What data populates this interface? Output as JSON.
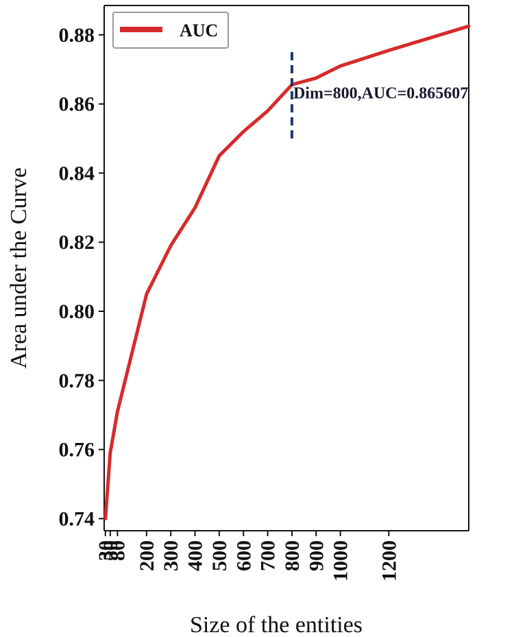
{
  "chart_data": {
    "type": "line",
    "xlabel": "Size of the entities",
    "ylabel": "Area under the Curve",
    "xlim": [
      25,
      1530
    ],
    "ylim": [
      0.7365,
      0.8885
    ],
    "x_ticks": [
      30,
      50,
      80,
      200,
      300,
      400,
      500,
      600,
      700,
      800,
      900,
      1000,
      1200
    ],
    "x_tick_labels": [
      "30",
      "50",
      "80",
      "200",
      "300",
      "400",
      "500",
      "600",
      "700",
      "800",
      "900",
      "1000",
      "1200"
    ],
    "y_ticks": [
      0.74,
      0.76,
      0.78,
      0.8,
      0.82,
      0.84,
      0.86,
      0.88
    ],
    "y_tick_labels": [
      "0.74",
      "0.76",
      "0.78",
      "0.80",
      "0.82",
      "0.84",
      "0.86",
      "0.88"
    ],
    "grid": false,
    "legend": {
      "position": "top-left"
    },
    "series": [
      {
        "name": "AUC",
        "color": "#d62b2b",
        "x": [
          30,
          50,
          80,
          200,
          300,
          400,
          500,
          600,
          700,
          800,
          900,
          1000,
          1200,
          1530
        ],
        "y": [
          0.74,
          0.759,
          0.771,
          0.805,
          0.819,
          0.83,
          0.845,
          0.852,
          0.858,
          0.8656,
          0.8675,
          0.871,
          0.8755,
          0.8825
        ]
      }
    ],
    "annotation": {
      "x": 800,
      "y": 0.865607,
      "label": "Dim=800,AUC=0.865607",
      "line_ymin": 0.85,
      "line_ymax": 0.875,
      "color": "#1f3a6e"
    }
  }
}
